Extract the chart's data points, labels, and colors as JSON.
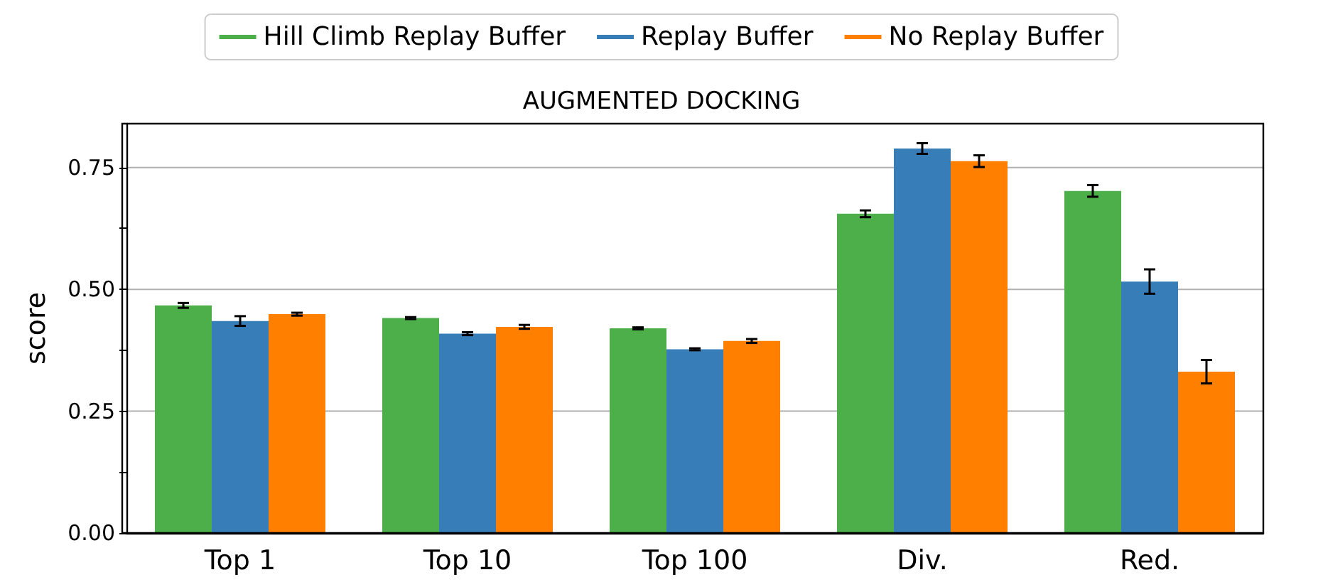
{
  "chart_data": {
    "type": "bar",
    "title": "AUGMENTED DOCKING",
    "ylabel": "score",
    "categories": [
      "Top 1",
      "Top 10",
      "Top 100",
      "Div.",
      "Red."
    ],
    "series": [
      {
        "name": "Hill Climb Replay Buffer",
        "color": "#4daf4a",
        "values": [
          0.467,
          0.441,
          0.42,
          0.655,
          0.702
        ],
        "errors": [
          0.005,
          0.002,
          0.002,
          0.007,
          0.012
        ]
      },
      {
        "name": "Replay Buffer",
        "color": "#377eb8",
        "values": [
          0.435,
          0.409,
          0.377,
          0.789,
          0.516
        ],
        "errors": [
          0.01,
          0.003,
          0.002,
          0.011,
          0.025
        ]
      },
      {
        "name": "No Replay Buffer",
        "color": "#ff7f00",
        "values": [
          0.449,
          0.423,
          0.394,
          0.763,
          0.331
        ],
        "errors": [
          0.003,
          0.004,
          0.004,
          0.012,
          0.024
        ]
      }
    ],
    "ylim": [
      0,
      0.84
    ],
    "yticks": [
      "0.00",
      {
        "value": 0.125,
        "label": null
      },
      {
        "value": 0.25,
        "label": "0.25"
      },
      {
        "value": 0.375,
        "label": null
      },
      {
        "value": 0.5,
        "label": "0.50"
      },
      {
        "value": 0.625,
        "label": null
      },
      {
        "value": 0.75,
        "label": "0.75"
      }
    ],
    "grid": "y",
    "legend": "top"
  }
}
